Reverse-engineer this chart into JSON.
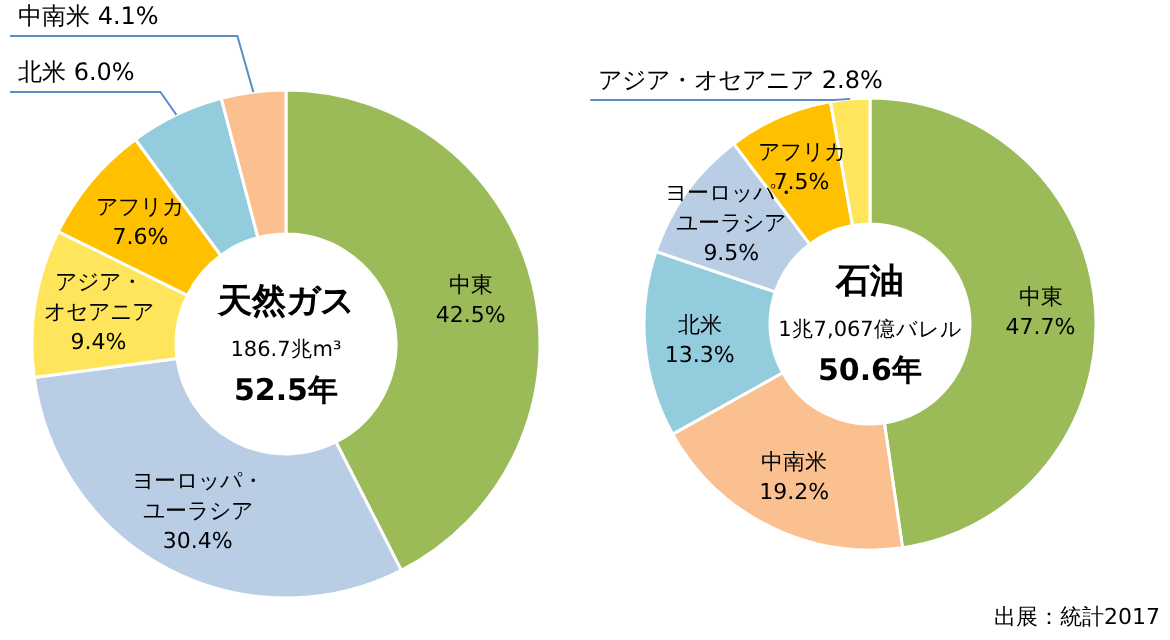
{
  "chart_data": [
    {
      "type": "donut",
      "title": "天然ガス",
      "subtitle": "186.7兆m³",
      "annotations": [
        "52.5年"
      ],
      "categories": [
        "中東",
        "ヨーロッパ・ユーラシア",
        "アジア・オセアニア",
        "アフリカ",
        "北米",
        "中南米"
      ],
      "values": [
        42.5,
        30.4,
        9.4,
        7.6,
        6.0,
        4.1
      ],
      "value_labels": [
        "42.5%",
        "30.4%",
        "9.4%",
        "7.6%",
        "6.0%",
        "4.1%"
      ],
      "colors": [
        "#9bbb59",
        "#b9cde5",
        "#ffe55c",
        "#ffc000",
        "#93cddd",
        "#fac090"
      ]
    },
    {
      "type": "donut",
      "title": "石油",
      "subtitle": "1兆7,067億バレル",
      "annotations": [
        "50.6年",
        "出展：統計2017"
      ],
      "categories": [
        "中東",
        "中南米",
        "北米",
        "ヨーロッパ・ユーラシア",
        "アフリカ",
        "アジア・オセアニア"
      ],
      "values": [
        47.7,
        19.2,
        13.3,
        9.5,
        7.5,
        2.8
      ],
      "value_labels": [
        "47.7%",
        "19.2%",
        "13.3%",
        "9.5%",
        "7.5%",
        "2.8%"
      ],
      "colors": [
        "#9bbb59",
        "#fac090",
        "#93cddd",
        "#b9cde5",
        "#ffc000",
        "#ffe55c"
      ]
    }
  ]
}
